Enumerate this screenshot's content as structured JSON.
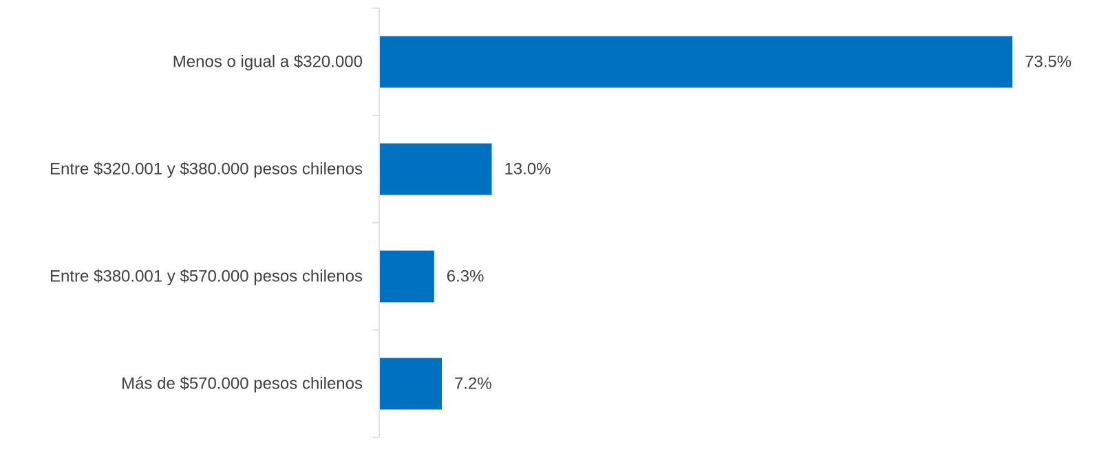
{
  "chart_data": {
    "type": "bar",
    "orientation": "horizontal",
    "categories": [
      "Menos o igual a $320.000",
      "Entre $320.001 y $380.000 pesos chilenos",
      "Entre $380.001 y $570.000 pesos chilenos",
      "Más de $570.000 pesos chilenos"
    ],
    "values": [
      73.5,
      13.0,
      6.3,
      7.2
    ],
    "value_labels": [
      "73.5%",
      "13.0%",
      "6.3%",
      "7.2%"
    ],
    "title": "",
    "xlabel": "",
    "ylabel": "",
    "xlim": [
      0,
      73.5
    ],
    "grid": false,
    "legend": "none",
    "colors": {
      "bar": "#0070C0",
      "axis": "#D9D9D9",
      "text": "#404040"
    }
  }
}
